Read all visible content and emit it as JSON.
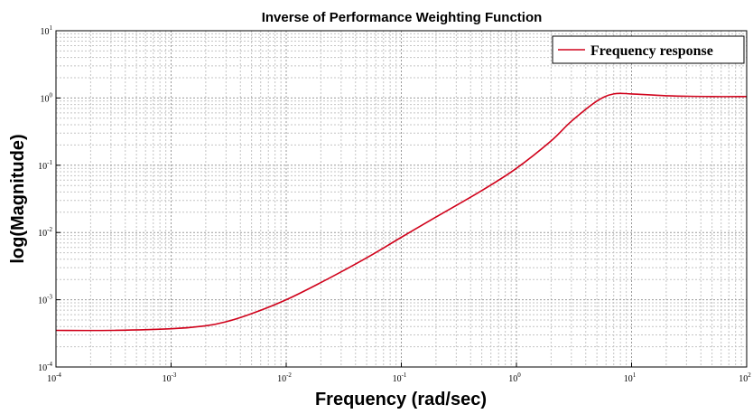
{
  "chart_data": {
    "type": "line",
    "title": "Inverse of Performance Weighting Function",
    "xlabel": "Frequency (rad/sec)",
    "ylabel": "log(Magnitude)",
    "x_scale": "log",
    "y_scale": "log",
    "xlim": [
      0.0001,
      100
    ],
    "ylim": [
      0.0001,
      10
    ],
    "grid": true,
    "legend_position": "top-right",
    "x_ticks": [
      {
        "base": "10",
        "exp": "-4"
      },
      {
        "base": "10",
        "exp": "-3"
      },
      {
        "base": "10",
        "exp": "-2"
      },
      {
        "base": "10",
        "exp": "-1"
      },
      {
        "base": "10",
        "exp": "0"
      },
      {
        "base": "10",
        "exp": "1"
      },
      {
        "base": "10",
        "exp": "2"
      }
    ],
    "y_ticks": [
      {
        "base": "10",
        "exp": "-4"
      },
      {
        "base": "10",
        "exp": "-3"
      },
      {
        "base": "10",
        "exp": "-2"
      },
      {
        "base": "10",
        "exp": "-1"
      },
      {
        "base": "10",
        "exp": "0"
      },
      {
        "base": "10",
        "exp": "1"
      }
    ],
    "series": [
      {
        "name": "Frequency response",
        "color": "#d0021b",
        "x": [
          0.0001,
          0.0003,
          0.001,
          0.002,
          0.003,
          0.005,
          0.01,
          0.02,
          0.05,
          0.1,
          0.2,
          0.5,
          1,
          2,
          3,
          5,
          7,
          10,
          20,
          50,
          100
        ],
        "y": [
          0.00035,
          0.00035,
          0.00037,
          0.00041,
          0.00047,
          0.00062,
          0.001,
          0.0018,
          0.0042,
          0.0085,
          0.017,
          0.042,
          0.09,
          0.23,
          0.45,
          0.9,
          1.15,
          1.15,
          1.08,
          1.05,
          1.05
        ]
      }
    ]
  }
}
